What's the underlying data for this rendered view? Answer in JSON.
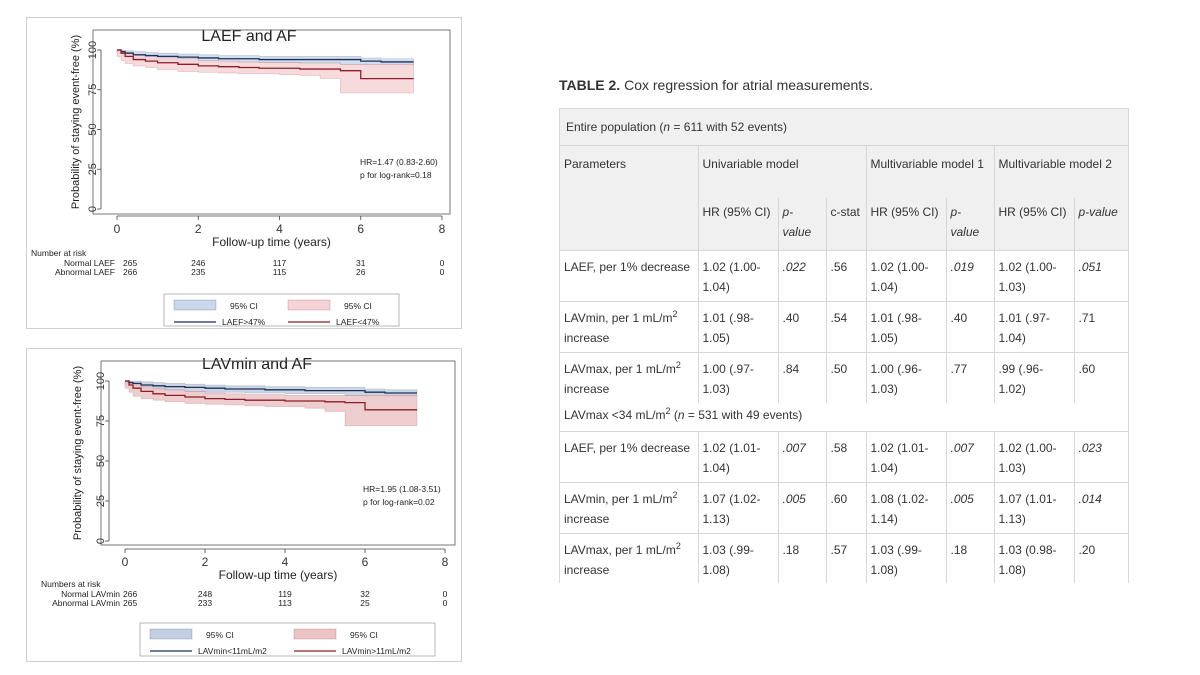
{
  "charts": [
    {
      "title": "LAEF and AF",
      "ylabel": "Probability of staying event-free (%)",
      "xlabel": "Follow-up time (years)",
      "hr_line1": "HR=1.47 (0.83-2.60)",
      "hr_line2": "p for log-rank=0.18",
      "risk_title": "Number at risk",
      "risk_rows": [
        {
          "label": "Normal LAEF",
          "values": [
            "265",
            "246",
            "117",
            "31",
            "0"
          ]
        },
        {
          "label": "Abnormal LAEF",
          "values": [
            "266",
            "235",
            "115",
            "26",
            "0"
          ]
        }
      ],
      "legend": [
        {
          "ci_label": "95% CI",
          "line_label": "LAEF>47%"
        },
        {
          "ci_label": "95% CI",
          "line_label": "LAEF<47%"
        }
      ]
    },
    {
      "title": "LAVmin and AF",
      "ylabel": "Probability of staying event-free (%)",
      "xlabel": "Follow-up time (years)",
      "hr_line1": "HR=1.95 (1.08-3.51)",
      "hr_line2": "p for log-rank=0.02",
      "risk_title": "Numbers at risk",
      "risk_rows": [
        {
          "label": "Normal LAVmin",
          "values": [
            "266",
            "248",
            "119",
            "32",
            "0"
          ]
        },
        {
          "label": "Abnormal LAVmin",
          "values": [
            "265",
            "233",
            "113",
            "25",
            "0"
          ]
        }
      ],
      "legend": [
        {
          "ci_label": "95% CI",
          "line_label": "LAVmin<11mL/m2"
        },
        {
          "ci_label": "95% CI",
          "line_label": "LAVmin>11mL/m2"
        }
      ]
    }
  ],
  "chart_data": [
    {
      "type": "line",
      "title": "LAEF and AF",
      "xlabel": "Follow-up time (years)",
      "ylabel": "Probability of staying event-free (%)",
      "xlim": [
        0,
        8
      ],
      "ylim": [
        0,
        100
      ],
      "xticks": [
        0,
        2,
        4,
        6,
        8
      ],
      "yticks": [
        0,
        25,
        50,
        75,
        100
      ],
      "x": [
        0,
        0.1,
        0.2,
        0.4,
        0.7,
        1,
        1.5,
        2,
        2.5,
        3,
        3.5,
        4,
        4.5,
        5,
        5.5,
        6,
        6.5,
        7,
        7.3
      ],
      "series": [
        {
          "name": "LAEF>47%",
          "color": "#1f2f5c",
          "band_color": "#c9d8ea",
          "values": [
            100,
            99,
            98,
            97,
            96.5,
            96,
            95.5,
            95,
            94.5,
            94.5,
            94,
            94,
            94,
            94,
            94,
            93,
            92.5,
            92.5,
            92.5
          ],
          "lower": [
            100,
            98,
            96.5,
            95,
            94.5,
            94,
            93.5,
            93,
            92.5,
            92.5,
            92,
            92,
            92,
            92,
            92,
            91,
            90.5,
            90.5,
            90.5
          ],
          "upper": [
            100,
            100,
            99.5,
            99,
            98.5,
            98,
            97.5,
            97,
            96.5,
            96.5,
            96,
            96,
            96,
            96,
            96,
            95,
            94.5,
            94.5,
            94.5
          ]
        },
        {
          "name": "LAEF<47%",
          "color": "#8b1e2a",
          "band_color": "#f6d3d6",
          "values": [
            100,
            98,
            96,
            94,
            93,
            92,
            91,
            90,
            89.5,
            89,
            88.5,
            88.5,
            88,
            88,
            87,
            82,
            82,
            82,
            82
          ],
          "lower": [
            100,
            96,
            93.5,
            91.5,
            90,
            89,
            87.5,
            86.5,
            86,
            85.5,
            85,
            85,
            84.5,
            84,
            82,
            73,
            73,
            73,
            73
          ],
          "upper": [
            100,
            100,
            98.5,
            96.5,
            96,
            95,
            94.5,
            93.5,
            93,
            92.5,
            92,
            92,
            91.5,
            91.5,
            91,
            91,
            91,
            91,
            91
          ]
        }
      ]
    },
    {
      "type": "line",
      "title": "LAVmin and AF",
      "xlabel": "Follow-up time (years)",
      "ylabel": "Probability of staying event-free (%)",
      "xlim": [
        0,
        8
      ],
      "ylim": [
        0,
        100
      ],
      "xticks": [
        0,
        2,
        4,
        6,
        8
      ],
      "yticks": [
        0,
        25,
        50,
        75,
        100
      ],
      "x": [
        0,
        0.1,
        0.2,
        0.4,
        0.7,
        1,
        1.5,
        2,
        2.5,
        3,
        3.5,
        4,
        4.5,
        5,
        5.5,
        6,
        6.5,
        7,
        7.3
      ],
      "series": [
        {
          "name": "LAVmin<11mL/m2",
          "color": "#1f2f5c",
          "band_color": "#c2cfe0",
          "values": [
            100,
            99,
            98.5,
            97.5,
            97,
            96.5,
            96,
            95.5,
            95,
            95,
            94.5,
            94.5,
            94,
            94,
            94,
            93,
            92.5,
            92.5,
            92.5
          ],
          "lower": [
            100,
            98,
            97,
            95.5,
            95,
            94.5,
            94,
            93.5,
            93,
            93,
            92.5,
            92.5,
            92,
            92,
            92,
            91,
            90.5,
            90.5,
            90.5
          ],
          "upper": [
            100,
            100,
            100,
            99.5,
            99,
            98.5,
            98,
            97.5,
            97,
            97,
            96.5,
            96.5,
            96,
            96,
            96,
            95,
            94.5,
            94.5,
            94.5
          ]
        },
        {
          "name": "LAVmin>11mL/m2",
          "color": "#8b1e2a",
          "band_color": "#ebc4c6",
          "values": [
            100,
            97.5,
            95.5,
            93.5,
            92,
            91,
            90,
            89,
            88.5,
            88,
            88,
            87.5,
            87.5,
            87,
            86.5,
            82,
            82,
            82,
            82
          ],
          "lower": [
            100,
            95.5,
            93,
            90.5,
            89,
            88,
            87,
            86,
            85.5,
            85,
            84.5,
            84,
            84,
            83,
            81,
            72,
            72,
            72,
            72
          ],
          "upper": [
            100,
            99.5,
            98,
            96.5,
            95.5,
            94.5,
            93.5,
            92.5,
            92,
            91.5,
            91.5,
            91,
            91,
            91,
            91,
            91,
            91,
            91,
            91
          ]
        }
      ]
    }
  ],
  "table": {
    "title_bold": "TABLE 2.",
    "title_rest": " Cox regression for atrial measurements.",
    "section1_pre": "Entire population (",
    "section1_n": "n",
    "section1_post": " = 611 with 52 events)",
    "h_parameters": "Parameters",
    "h_univariable": "Univariable model",
    "h_multi1": "Multivariable model 1",
    "h_multi2": "Multivariable model 2",
    "h_hr1": "HR (95% CI)",
    "h_p1": "p-value",
    "h_cstat": "c-stat",
    "h_hr2": "HR (95% CI)",
    "h_p2": "p-value",
    "h_hr3": "HR (95% CI)",
    "h_p3": "p-value",
    "section2_pre": "LAVmax <34 mL/m",
    "section2_sup": "2",
    "section2_mid": " (",
    "section2_n": "n",
    "section2_post": " = 531 with 49 events)",
    "rows": [
      {
        "p_pre": "LAEF, per 1%",
        "p_sup": "",
        "p_post": " decrease",
        "hr1": "1.02 (1.00-1.04)",
        "p1": ".022",
        "c": ".56",
        "hr2": "1.02 (1.00-1.04)",
        "p2": ".019",
        "hr3": "1.02 (1.00-1.03)",
        "p3": ".051"
      },
      {
        "p_pre": "LAVmin, per 1 mL/m",
        "p_sup": "2",
        "p_post": " increase",
        "hr1": "1.01 (.98-1.05)",
        "p1": ".40",
        "c": ".54",
        "hr2": "1.01 (.98-1.05)",
        "p2": ".40",
        "hr3": "1.01 (.97-1.04)",
        "p3": ".71"
      },
      {
        "p_pre": "LAVmax, per 1 mL/m",
        "p_sup": "2",
        "p_post": " increase",
        "hr1": "1.00 (.97-1.03)",
        "p1": ".84",
        "c": ".50",
        "hr2": "1.00 (.96-1.03)",
        "p2": ".77",
        "hr3": ".99 (.96-1.02)",
        "p3": ".60"
      },
      {
        "p_pre": "LAEF, per 1%",
        "p_sup": "",
        "p_post": " decrease",
        "hr1": "1.02 (1.01-1.04)",
        "p1": ".007",
        "c": ".58",
        "hr2": "1.02 (1.01-1.04)",
        "p2": ".007",
        "hr3": "1.02 (1.00-1.03)",
        "p3": ".023"
      },
      {
        "p_pre": "LAVmin, per 1 mL/m",
        "p_sup": "2",
        "p_post": " increase",
        "hr1": "1.07 (1.02-1.13)",
        "p1": ".005",
        "c": ".60",
        "hr2": "1.08 (1.02-1.14)",
        "p2": ".005",
        "hr3": "1.07 (1.01-1.13)",
        "p3": ".014"
      },
      {
        "p_pre": "LAVmax, per 1 mL/m",
        "p_sup": "2",
        "p_post": " increase",
        "hr1": "1.03 (.99-1.08)",
        "p1": ".18",
        "c": ".57",
        "hr2": "1.03 (.99-1.08)",
        "p2": ".18",
        "hr3": "1.03 (0.98-1.08)",
        "p3": ".20"
      }
    ]
  }
}
